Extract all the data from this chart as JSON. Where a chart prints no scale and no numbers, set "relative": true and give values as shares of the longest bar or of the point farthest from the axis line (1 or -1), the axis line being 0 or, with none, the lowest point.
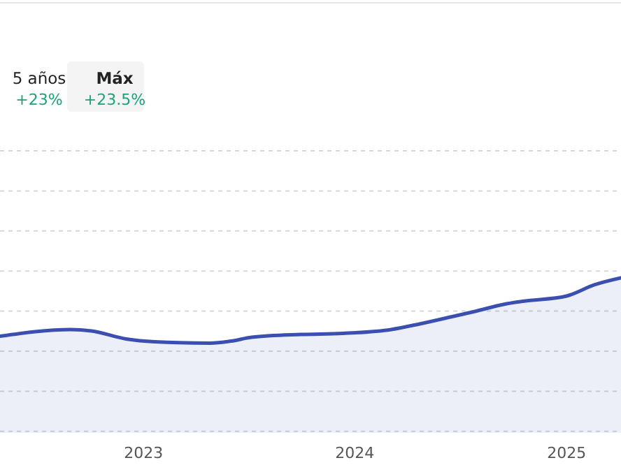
{
  "chart_data": {
    "type": "area",
    "relative": true,
    "grid": "y",
    "xlim": [
      "2022-04-28",
      "2025-04-05"
    ],
    "xticks": [
      "2023",
      "2024",
      "2025"
    ],
    "annotations": [
      "5 años",
      "+23%",
      "Máx",
      "+23.5%"
    ],
    "x": [
      "2022-04-28",
      "2022-08-28",
      "2022-10-03",
      "2022-12-02",
      "2023-01-20",
      "2023-04-26",
      "2023-06-01",
      "2023-07-07",
      "2023-09-30",
      "2023-12-11",
      "2024-03-04",
      "2024-04-22",
      "2024-06-09",
      "2024-07-27",
      "2024-09-14",
      "2024-10-20",
      "2025-01-01",
      "2025-02-18",
      "2025-04-05"
    ],
    "series": [
      {
        "color": "#3a4fb0",
        "values": [
          0.624,
          0.667,
          0.658,
          0.606,
          0.588,
          0.579,
          0.592,
          0.617,
          0.635,
          0.642,
          0.667,
          0.703,
          0.743,
          0.784,
          0.829,
          0.85,
          0.883,
          0.955,
          1
        ]
      }
    ]
  }
}
